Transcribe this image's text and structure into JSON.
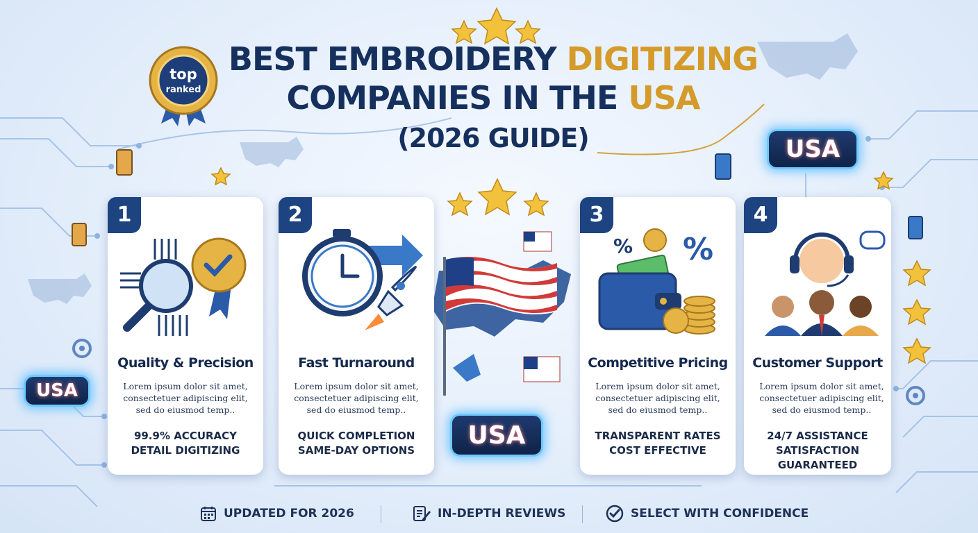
{
  "title": {
    "line1_a": "BEST EMBROIDERY ",
    "line1_b": "DIGITIZING",
    "line2_a": "COMPANIES IN THE ",
    "line2_b": "USA",
    "line3": "(2026 GUIDE)"
  },
  "badge": {
    "line1": "top",
    "line2": "ranked"
  },
  "usa_label": "USA",
  "cards": [
    {
      "number": "1",
      "title": "Quality & Precision",
      "desc": "Lorem ipsum dolor sit amet, consectetuer adipiscing elit, sed do eiusmod temp..",
      "hl1": "99.9% ACCURACY",
      "hl2": "DETAIL DIGITIZING"
    },
    {
      "number": "2",
      "title": "Fast Turnaround",
      "desc": "Lorem ipsum dolor sit amet, consectetuer adipiscing elit, sed do eiusmod temp..",
      "hl1": "QUICK COMPLETION",
      "hl2": "SAME-DAY OPTIONS"
    },
    {
      "number": "3",
      "title": "Competitive Pricing",
      "desc": "Lorem ipsum dolor sit amet, consectetuer adipiscing elit, sed do eiusmod temp..",
      "hl1": "TRANSPARENT RATES",
      "hl2": "COST EFFECTIVE"
    },
    {
      "number": "4",
      "title": "Customer Support",
      "desc": "Lorem ipsum dolor sit amet, consectetuer adipiscing elit, sed do eiusmod temp..",
      "hl1": "24/7 ASSISTANCE",
      "hl2": "SATISFACTION GUARANTEED"
    }
  ],
  "footer": {
    "item1": "UPDATED FOR 2026",
    "item2": "IN-DEPTH REVIEWS",
    "item3": "SELECT WITH CONFIDENCE"
  },
  "colors": {
    "navy": "#1d4380",
    "gold": "#d49b2a",
    "usa_red": "#ff6b6b",
    "glow": "#6fc8ff"
  },
  "icons": [
    "calendar-icon",
    "review-icon",
    "check-circle-icon",
    "magnifier-icon",
    "stopwatch-icon",
    "rocket-icon",
    "wallet-icon",
    "headset-icon",
    "flag-icon",
    "star-icon",
    "thread-spool-icon",
    "gear-icon"
  ]
}
